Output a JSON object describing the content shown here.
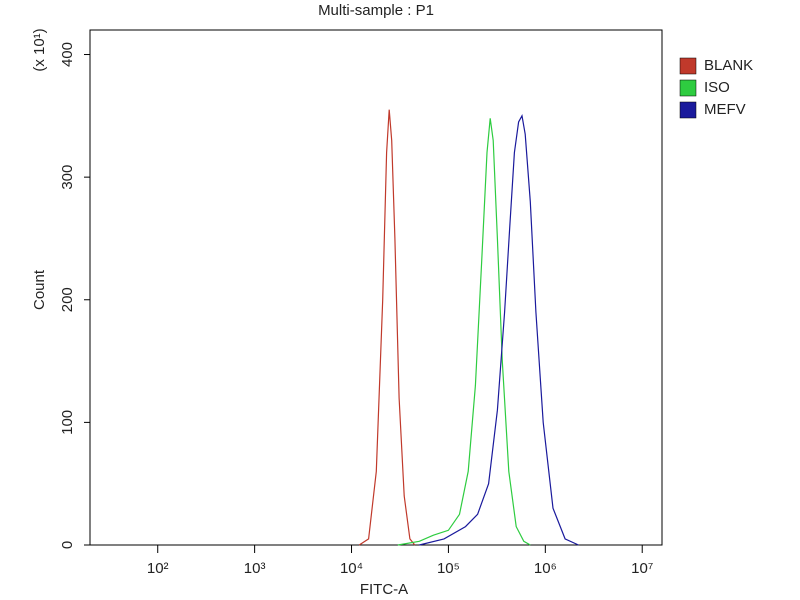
{
  "chart_data": {
    "type": "line",
    "title": "Multi-sample : P1",
    "x_label": "FITC-A",
    "y_label": "Count",
    "y_annotation": "(x 10¹)",
    "x_log": true,
    "xlim": [
      20,
      16000000
    ],
    "xticks": [
      {
        "value": 100,
        "label": "10²"
      },
      {
        "value": 1000,
        "label": "10³"
      },
      {
        "value": 10000,
        "label": "10⁴"
      },
      {
        "value": 100000,
        "label": "10⁵"
      },
      {
        "value": 1000000,
        "label": "10⁶"
      },
      {
        "value": 10000000,
        "label": "10⁷"
      }
    ],
    "ylim": [
      0,
      420
    ],
    "yticks": [
      0,
      100,
      200,
      300,
      400
    ],
    "legend": "right",
    "series": [
      {
        "name": "BLANK",
        "color": "#c0392b",
        "x": [
          12000,
          15000,
          18000,
          21000,
          23000,
          24500,
          26000,
          28000,
          31000,
          35000,
          40000,
          45000
        ],
        "values": [
          0,
          5,
          60,
          200,
          320,
          355,
          330,
          250,
          120,
          40,
          5,
          0
        ]
      },
      {
        "name": "ISO",
        "color": "#2ecc40",
        "x": [
          30000,
          50000,
          70000,
          100000,
          130000,
          160000,
          190000,
          220000,
          250000,
          270000,
          290000,
          320000,
          360000,
          420000,
          500000,
          600000,
          700000
        ],
        "values": [
          0,
          3,
          8,
          12,
          25,
          60,
          130,
          230,
          320,
          348,
          330,
          250,
          150,
          60,
          15,
          3,
          0
        ]
      },
      {
        "name": "MEFV",
        "color": "#1a1a9c",
        "x": [
          50000,
          90000,
          150000,
          200000,
          260000,
          320000,
          380000,
          430000,
          480000,
          530000,
          575000,
          620000,
          700000,
          800000,
          950000,
          1200000,
          1600000,
          2200000
        ],
        "values": [
          0,
          5,
          15,
          25,
          50,
          110,
          190,
          260,
          320,
          345,
          350,
          335,
          280,
          190,
          100,
          30,
          5,
          0
        ]
      }
    ]
  }
}
